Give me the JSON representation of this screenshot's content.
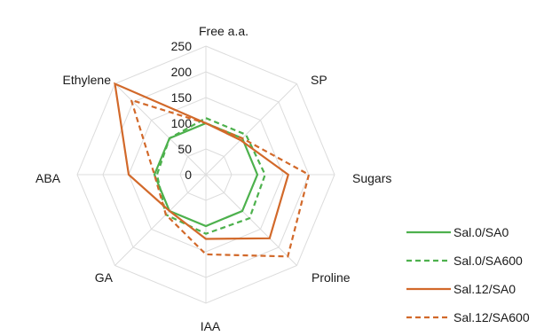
{
  "chart_data": {
    "type": "radar",
    "title": "",
    "axes": [
      "Free a.a.",
      "SP",
      "Sugars",
      "Proline",
      "IAA",
      "GA",
      "ABA",
      "Ethylene"
    ],
    "ticks": [
      0,
      50,
      100,
      150,
      200,
      250
    ],
    "rlim": [
      0,
      250
    ],
    "grid": true,
    "legend_position": "bottom-right",
    "series": [
      {
        "name": "Sal.0/SA0",
        "color": "#4db14d",
        "dash": "solid",
        "values": [
          100,
          100,
          100,
          100,
          100,
          100,
          100,
          100
        ]
      },
      {
        "name": "Sal.0/SA600",
        "color": "#4db14d",
        "dash": "dashed",
        "values": [
          110,
          110,
          115,
          120,
          115,
          110,
          95,
          100
        ]
      },
      {
        "name": "Sal.12/SA0",
        "color": "#d2692a",
        "dash": "solid",
        "values": [
          100,
          95,
          160,
          175,
          125,
          100,
          150,
          250
        ]
      },
      {
        "name": "Sal.12/SA600",
        "color": "#d2692a",
        "dash": "dashed",
        "values": [
          100,
          100,
          200,
          225,
          155,
          110,
          100,
          205
        ]
      }
    ]
  }
}
